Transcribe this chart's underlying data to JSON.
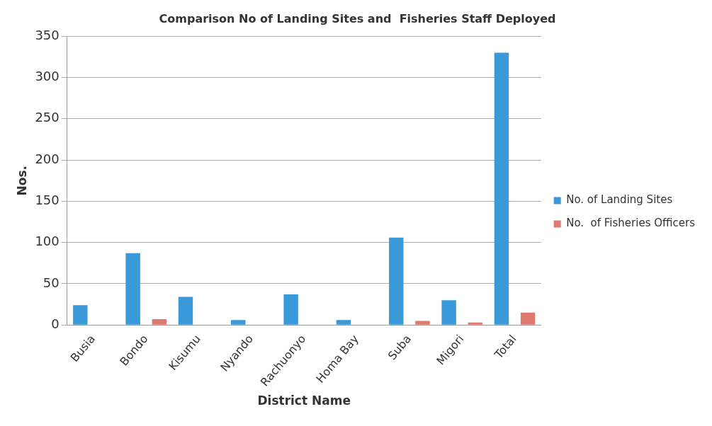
{
  "chart_data": {
    "type": "bar",
    "title": "Comparison No of Landing Sites and  Fisheries Staff Deployed",
    "xlabel": "District Name",
    "ylabel": "Nos.",
    "categories": [
      "Busia",
      "Bondo",
      "Kisumu",
      "Nyando",
      "Rachuonyo",
      "Homa Bay",
      "Suba",
      "Migori",
      "Total"
    ],
    "series": [
      {
        "name": "No. of Landing Sites",
        "color": "#3a9ad9",
        "values": [
          24,
          87,
          34,
          6,
          37,
          6,
          106,
          30,
          330
        ]
      },
      {
        "name": "No.  of Fisheries Officers",
        "color": "#e07a6e",
        "values": [
          0,
          7,
          0,
          0,
          0,
          0,
          5,
          3,
          15
        ]
      }
    ],
    "ylim": [
      0,
      350
    ],
    "yticks": [
      0,
      50,
      100,
      150,
      200,
      250,
      300,
      350
    ],
    "grid": "y",
    "legend": "right"
  }
}
